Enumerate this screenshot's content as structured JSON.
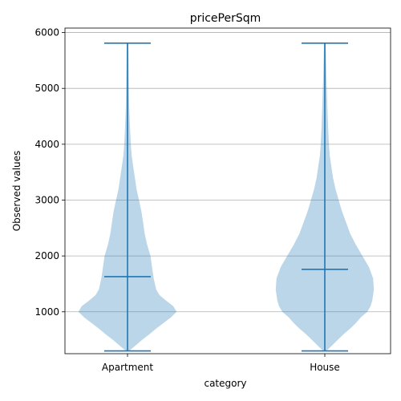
{
  "chart_data": {
    "type": "violin",
    "title": "pricePerSqm",
    "xlabel": "category",
    "ylabel": "Observed values",
    "categories": [
      "Apartment",
      "House"
    ],
    "ylim": [
      250,
      6080
    ],
    "yticks": [
      1000,
      2000,
      3000,
      4000,
      5000,
      6000
    ],
    "grid": "y",
    "color": "#1f77b4",
    "series": [
      {
        "category": "Apartment",
        "min": 300,
        "median": 1630,
        "max": 5810,
        "density": [
          {
            "y": 300,
            "w": 0.02
          },
          {
            "y": 400,
            "w": 0.1
          },
          {
            "y": 500,
            "w": 0.18
          },
          {
            "y": 600,
            "w": 0.27
          },
          {
            "y": 700,
            "w": 0.35
          },
          {
            "y": 800,
            "w": 0.44
          },
          {
            "y": 900,
            "w": 0.53
          },
          {
            "y": 1000,
            "w": 0.6
          },
          {
            "y": 1100,
            "w": 0.56
          },
          {
            "y": 1200,
            "w": 0.47
          },
          {
            "y": 1300,
            "w": 0.39
          },
          {
            "y": 1400,
            "w": 0.35
          },
          {
            "y": 1600,
            "w": 0.32
          },
          {
            "y": 1800,
            "w": 0.3
          },
          {
            "y": 2000,
            "w": 0.28
          },
          {
            "y": 2200,
            "w": 0.24
          },
          {
            "y": 2400,
            "w": 0.21
          },
          {
            "y": 2600,
            "w": 0.19
          },
          {
            "y": 2800,
            "w": 0.17
          },
          {
            "y": 3000,
            "w": 0.14
          },
          {
            "y": 3200,
            "w": 0.11
          },
          {
            "y": 3400,
            "w": 0.09
          },
          {
            "y": 3600,
            "w": 0.07
          },
          {
            "y": 3800,
            "w": 0.05
          },
          {
            "y": 4000,
            "w": 0.04
          },
          {
            "y": 4300,
            "w": 0.03
          },
          {
            "y": 4700,
            "w": 0.02
          },
          {
            "y": 5200,
            "w": 0.015
          },
          {
            "y": 5810,
            "w": 0.01
          }
        ]
      },
      {
        "category": "House",
        "min": 300,
        "median": 1760,
        "max": 5810,
        "density": [
          {
            "y": 300,
            "w": 0.02
          },
          {
            "y": 400,
            "w": 0.09
          },
          {
            "y": 500,
            "w": 0.16
          },
          {
            "y": 600,
            "w": 0.23
          },
          {
            "y": 700,
            "w": 0.31
          },
          {
            "y": 800,
            "w": 0.38
          },
          {
            "y": 900,
            "w": 0.44
          },
          {
            "y": 1000,
            "w": 0.52
          },
          {
            "y": 1100,
            "w": 0.56
          },
          {
            "y": 1200,
            "w": 0.58
          },
          {
            "y": 1400,
            "w": 0.6
          },
          {
            "y": 1600,
            "w": 0.59
          },
          {
            "y": 1800,
            "w": 0.54
          },
          {
            "y": 2000,
            "w": 0.46
          },
          {
            "y": 2200,
            "w": 0.38
          },
          {
            "y": 2400,
            "w": 0.31
          },
          {
            "y": 2600,
            "w": 0.26
          },
          {
            "y": 2800,
            "w": 0.21
          },
          {
            "y": 3000,
            "w": 0.17
          },
          {
            "y": 3200,
            "w": 0.13
          },
          {
            "y": 3400,
            "w": 0.1
          },
          {
            "y": 3600,
            "w": 0.08
          },
          {
            "y": 3800,
            "w": 0.06
          },
          {
            "y": 4000,
            "w": 0.05
          },
          {
            "y": 4300,
            "w": 0.04
          },
          {
            "y": 4700,
            "w": 0.03
          },
          {
            "y": 5200,
            "w": 0.02
          },
          {
            "y": 5810,
            "w": 0.01
          }
        ]
      }
    ]
  }
}
